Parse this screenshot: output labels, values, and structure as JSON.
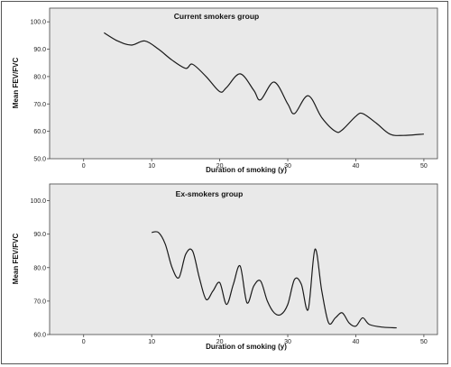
{
  "chart_data": [
    {
      "type": "line",
      "title": "Current smokers group",
      "xlabel": "Duration of smoking (y)",
      "ylabel": "Mean FEV/FVC",
      "xlim": [
        -5,
        52
      ],
      "ylim": [
        50,
        105
      ],
      "x_ticks": [
        0,
        10,
        20,
        30,
        40,
        50
      ],
      "y_ticks": [
        50.0,
        60.0,
        70.0,
        80.0,
        90.0,
        100.0
      ],
      "grid": false,
      "series": [
        {
          "x": [
            3,
            5,
            7,
            9,
            11,
            13,
            15,
            16,
            18,
            20,
            21,
            23,
            25,
            26,
            28,
            30,
            31,
            33,
            35,
            37,
            38,
            40,
            41,
            43,
            45,
            47,
            50
          ],
          "y": [
            96,
            93,
            91.5,
            93,
            90,
            86,
            83,
            84.5,
            80,
            74.5,
            76,
            81,
            75,
            71.5,
            78,
            70,
            66.5,
            73,
            65,
            60,
            60.5,
            65.5,
            66.5,
            63,
            59,
            58.5,
            59
          ]
        }
      ]
    },
    {
      "type": "line",
      "title": "Ex-smokers group",
      "xlabel": "Duration of smoking (y)",
      "ylabel": "Mean FEV/FVC",
      "xlim": [
        -5,
        52
      ],
      "ylim": [
        60,
        105
      ],
      "x_ticks": [
        0,
        10,
        20,
        30,
        40,
        50
      ],
      "y_ticks": [
        60.0,
        70.0,
        80.0,
        90.0,
        100.0
      ],
      "grid": false,
      "series": [
        {
          "x": [
            10,
            11,
            12,
            13,
            14,
            15,
            16,
            17,
            18,
            19,
            20,
            21,
            22,
            23,
            24,
            25,
            26,
            27,
            28,
            29,
            30,
            31,
            32,
            33,
            34,
            35,
            36,
            37,
            38,
            39,
            40,
            41,
            42,
            44,
            46
          ],
          "y": [
            90.5,
            90.5,
            87,
            80,
            77,
            84,
            85,
            77,
            70.5,
            73,
            75.5,
            69,
            75,
            80.5,
            69.5,
            74.5,
            76,
            70,
            66.5,
            66,
            69,
            76.5,
            75,
            67.5,
            85.5,
            73,
            63.5,
            65,
            66.5,
            63.5,
            62.5,
            65,
            63,
            62.2,
            62
          ]
        }
      ]
    }
  ]
}
